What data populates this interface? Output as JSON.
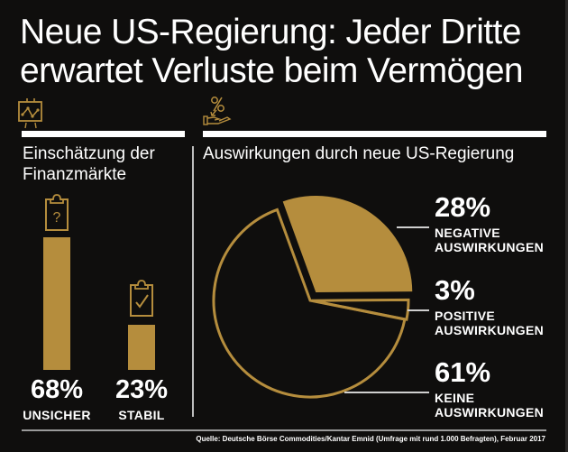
{
  "title": {
    "line1": "Neue US-Regierung: Jeder Dritte",
    "line2": "erwartet Verluste beim Vermögen"
  },
  "colors": {
    "accent": "#b58d3d",
    "background": "#0f0e0d",
    "text": "#ffffff"
  },
  "icons": {
    "left_section": "chart-presentation-icon",
    "right_section": "percent-hand-icon",
    "bar1": "clipboard-question-icon",
    "bar2": "clipboard-check-icon"
  },
  "left_section": {
    "title_line1": "Einschätzung der",
    "title_line2": "Finanzmärkte"
  },
  "right_section": {
    "title": "Auswirkungen durch neue US-Regierung"
  },
  "chart_data": [
    {
      "type": "bar",
      "title": "Einschätzung der Finanzmärkte",
      "categories": [
        "UNSICHER",
        "STABIL"
      ],
      "values": [
        68,
        23
      ],
      "value_labels": [
        "68%",
        "23%"
      ],
      "unit": "%"
    },
    {
      "type": "pie",
      "title": "Auswirkungen durch neue US-Regierung",
      "slices": [
        {
          "label_line1": "NEGATIVE",
          "label_line2": "AUSWIRKUNGEN",
          "value": 28,
          "value_label": "28%",
          "style": "filled"
        },
        {
          "label_line1": "POSITIVE",
          "label_line2": "AUSWIRKUNGEN",
          "value": 3,
          "value_label": "3%",
          "style": "outline"
        },
        {
          "label_line1": "KEINE",
          "label_line2": "AUSWIRKUNGEN",
          "value": 61,
          "value_label": "61%",
          "style": "outline"
        }
      ],
      "unit": "%"
    }
  ],
  "source": "Quelle: Deutsche Börse Commodities/Kantar Emnid (Umfrage mit rund 1.000 Befragten), Februar 2017"
}
